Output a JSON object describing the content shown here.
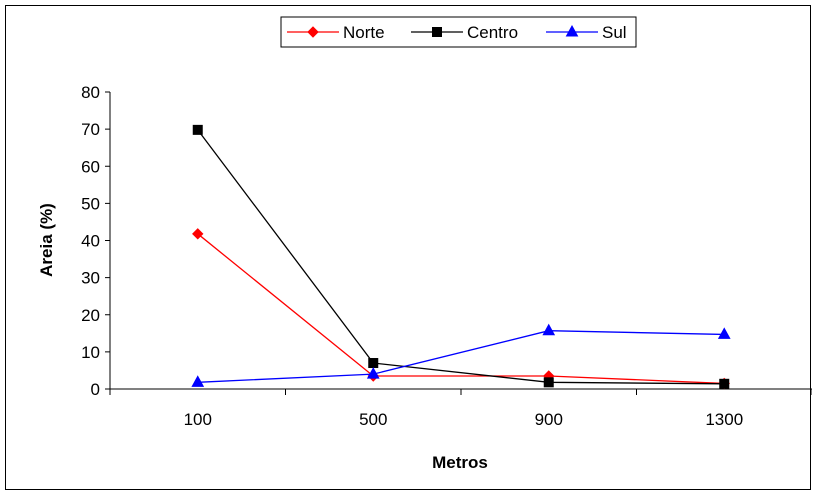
{
  "chart_data": {
    "type": "line",
    "categories": [
      "100",
      "500",
      "900",
      "1300"
    ],
    "series": [
      {
        "name": "Norte",
        "values": [
          41.8,
          3.5,
          3.5,
          1.5
        ],
        "color": "#ff0000",
        "marker": "diamond"
      },
      {
        "name": "Centro",
        "values": [
          69.8,
          7.0,
          1.8,
          1.4
        ],
        "color": "#000000",
        "marker": "square"
      },
      {
        "name": "Sul",
        "values": [
          1.8,
          4.0,
          15.7,
          14.7
        ],
        "color": "#0000ff",
        "marker": "triangle"
      }
    ],
    "xlabel": "Metros",
    "ylabel": "Areia (%)",
    "ylim": [
      0,
      80
    ],
    "yticks": [
      "0",
      "10",
      "20",
      "30",
      "40",
      "50",
      "60",
      "70",
      "80"
    ],
    "grid": false,
    "legend_position": "top"
  }
}
